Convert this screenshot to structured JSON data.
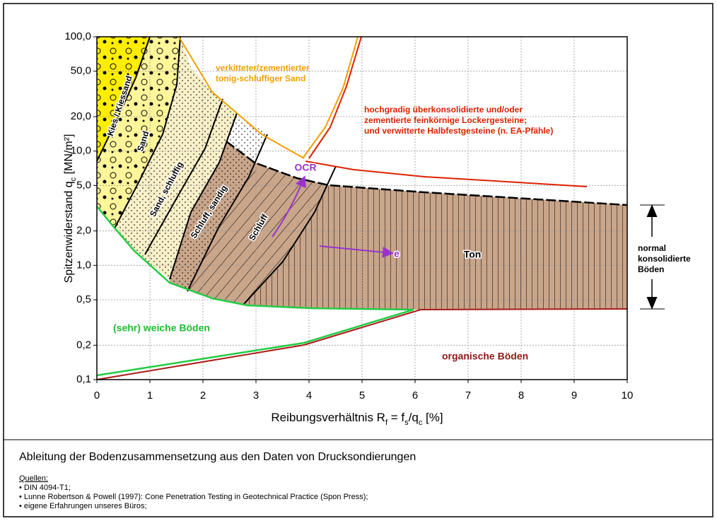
{
  "chart_data": {
    "type": "zones",
    "xlabel": [
      "Reibungsverhältnis R",
      "f",
      " = f",
      "s",
      "/q",
      "c",
      " [%]"
    ],
    "ylabel": [
      "Spitzenwiderstand q",
      "c",
      " [MN/m²]"
    ],
    "xlim": [
      0,
      10
    ],
    "ylim": [
      0.1,
      100
    ],
    "log_y": true,
    "grid": true,
    "xticks": [
      0,
      1,
      2,
      3,
      4,
      5,
      6,
      7,
      8,
      9,
      10
    ],
    "yticks": [
      {
        "value": 100,
        "label": "100,0"
      },
      {
        "value": 50,
        "label": "50,0"
      },
      {
        "value": 20,
        "label": "20,0"
      },
      {
        "value": 10,
        "label": "10,0"
      },
      {
        "value": 5,
        "label": "5,0"
      },
      {
        "value": 2,
        "label": "2,0"
      },
      {
        "value": 1,
        "label": "1,0"
      },
      {
        "value": 0.5,
        "label": "0,5"
      },
      {
        "value": 0.2,
        "label": "0,2"
      },
      {
        "value": 0.1,
        "label": "0,1"
      }
    ],
    "labels": [
      [
        "Kies / Kiessand"
      ],
      [
        "Sand"
      ],
      [
        "Sand, schluffig"
      ],
      [
        "Schluff, sandig"
      ],
      [
        "Schluff"
      ],
      [
        "Ton"
      ],
      [
        "OCR"
      ],
      [
        "e"
      ],
      [
        "(sehr) weiche Böden"
      ],
      [
        "organische Böden"
      ],
      [
        "verkitteter/zementierter",
        "tonig-schluffiger Sand"
      ],
      [
        "hochgradig überkonsolidierte und/oder",
        "zementierte feinkörnige Lockergesteine;",
        "und verwitterte Halbfestgesteine (n. EA-Pfähle)"
      ],
      [
        "normal",
        "konsolidierte",
        "Böden"
      ]
    ]
  },
  "caption": "Ableitung der Bodenzusammensetzung aus den Daten von Drucksondierungen",
  "sources": {
    "title": "Quellen:",
    "items": [
      "• DIN 4094-T1;",
      "• Lunne Robertson & Powell (1997): Cone Penetration Testing in Geotechnical Practice (Spon Press);",
      "• eigene Erfahrungen unseres Büros;"
    ]
  }
}
